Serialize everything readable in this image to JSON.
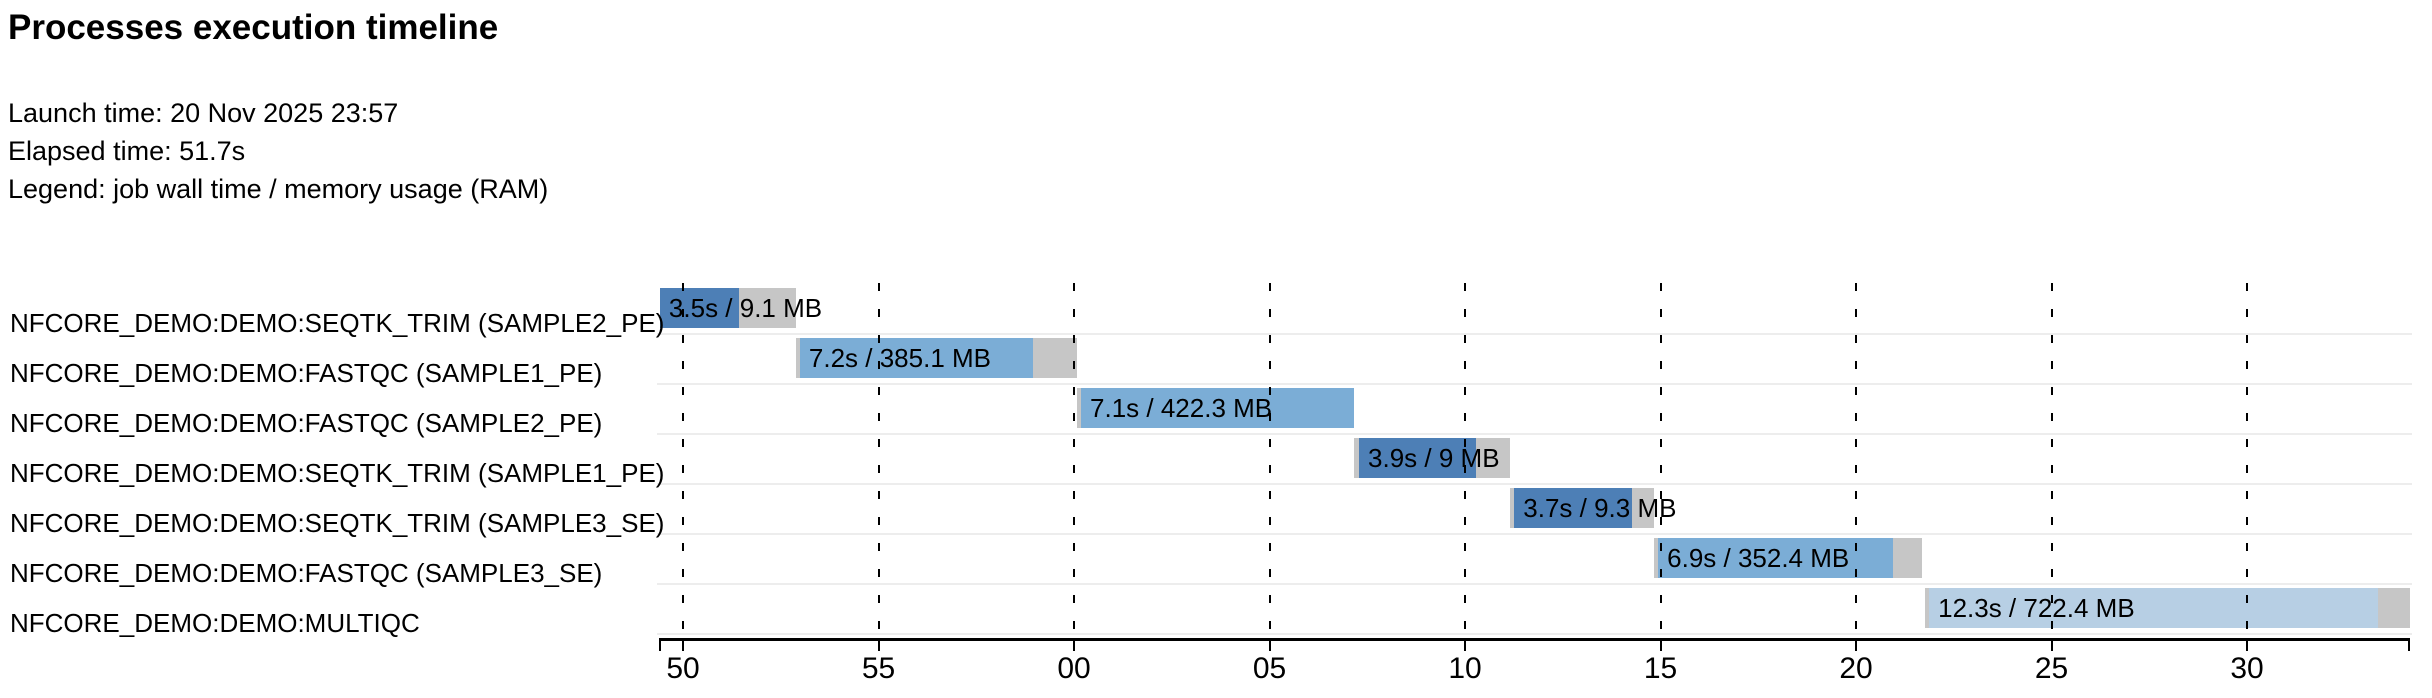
{
  "header": {
    "title": "Processes execution timeline",
    "launch": "Launch time: 20 Nov 2025 23:57",
    "elapsed": "Elapsed time: 51.7s",
    "legend": "Legend: job wall time / memory usage (RAM)"
  },
  "colors": {
    "run_dark": "#4d7fb6",
    "run_medium": "#7badd6",
    "run_light": "#b7cfe4",
    "overhead_gray": "#c6c6c6",
    "separator": "#ededed",
    "axis": "#000000",
    "background": "#ffffff"
  },
  "chart_data": {
    "type": "gantt-timeline",
    "title": "Processes execution timeline",
    "launch_time": "20 Nov 2025 23:57",
    "elapsed_time_s": 51.7,
    "legend": "job wall time / memory usage (RAM)",
    "x_axis": {
      "tick_labels": [
        "50",
        "55",
        "00",
        "05",
        "10",
        "15",
        "20",
        "25",
        "30"
      ],
      "tick_seconds": [
        50,
        55,
        60,
        65,
        70,
        75,
        80,
        85,
        90
      ],
      "domain_seconds": [
        49.39,
        94.17
      ],
      "grid": "dashed-vertical",
      "description": "clock seconds, 23:57:50 through 23:58:30"
    },
    "rows": [
      {
        "process": "NFCORE_DEMO:DEMO:SEQTK_TRIM (SAMPLE2_PE)",
        "bar_label": "3.5s / 9.1 MB",
        "wall_time": "3.5s",
        "memory": "9.1 MB",
        "t_start": 49.41,
        "t_run_start": 49.41,
        "t_run_end": 51.43,
        "t_end": 52.89,
        "shade": "dark"
      },
      {
        "process": "NFCORE_DEMO:DEMO:FASTQC (SAMPLE1_PE)",
        "bar_label": "7.2s / 385.1 MB",
        "wall_time": "7.2s",
        "memory": "385.1 MB",
        "t_start": 52.89,
        "t_run_start": 52.99,
        "t_run_end": 58.95,
        "t_end": 60.08,
        "shade": "medium"
      },
      {
        "process": "NFCORE_DEMO:DEMO:FASTQC (SAMPLE2_PE)",
        "bar_label": "7.1s / 422.3 MB",
        "wall_time": "7.1s",
        "memory": "422.3 MB",
        "t_start": 60.08,
        "t_run_start": 60.18,
        "t_run_end": 67.16,
        "t_end": 67.16,
        "shade": "medium"
      },
      {
        "process": "NFCORE_DEMO:DEMO:SEQTK_TRIM (SAMPLE1_PE)",
        "bar_label": "3.9s / 9 MB",
        "wall_time": "3.9s",
        "memory": "9 MB",
        "t_start": 67.16,
        "t_run_start": 67.29,
        "t_run_end": 70.28,
        "t_end": 71.15,
        "shade": "dark"
      },
      {
        "process": "NFCORE_DEMO:DEMO:SEQTK_TRIM (SAMPLE3_SE)",
        "bar_label": "3.7s / 9.3 MB",
        "wall_time": "3.7s",
        "memory": "9.3 MB",
        "t_start": 71.15,
        "t_run_start": 71.26,
        "t_run_end": 74.27,
        "t_end": 74.83,
        "shade": "dark"
      },
      {
        "process": "NFCORE_DEMO:DEMO:FASTQC (SAMPLE3_SE)",
        "bar_label": "6.9s / 352.4 MB",
        "wall_time": "6.9s",
        "memory": "352.4 MB",
        "t_start": 74.83,
        "t_run_start": 74.94,
        "t_run_end": 80.95,
        "t_end": 81.69,
        "shade": "medium"
      },
      {
        "process": "NFCORE_DEMO:DEMO:MULTIQC",
        "bar_label": "12.3s / 722.4 MB",
        "wall_time": "12.3s",
        "memory": "722.4 MB",
        "t_start": 81.77,
        "t_run_start": 81.87,
        "t_run_end": 93.35,
        "t_end": 94.17,
        "shade": "light"
      }
    ]
  }
}
